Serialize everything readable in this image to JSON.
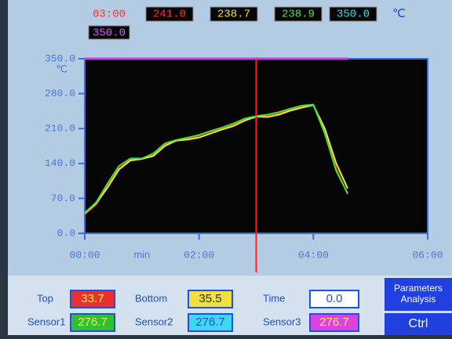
{
  "header": {
    "time": "03:00",
    "readouts": [
      {
        "text": "241.0",
        "color": "#ff3030"
      },
      {
        "text": "238.7",
        "color": "#f0e040"
      },
      {
        "text": "238.9",
        "color": "#50e050"
      },
      {
        "text": "350.0",
        "color": "#40d8e8"
      }
    ],
    "unit": "℃",
    "setpoint": {
      "text": "350.0",
      "color": "#d060f0"
    }
  },
  "chart_data": {
    "type": "line",
    "y_unit": "℃",
    "x_unit": "min",
    "x": [
      0,
      0.2,
      0.4,
      0.6,
      0.8,
      1.0,
      1.2,
      1.4,
      1.6,
      1.8,
      2.0,
      2.2,
      2.4,
      2.6,
      2.8,
      3.0,
      3.2,
      3.4,
      3.6,
      3.8,
      4.0,
      4.2,
      4.4,
      4.6
    ],
    "series": [
      {
        "color": "#ff2020",
        "values": [
          38,
          58,
          95,
          130,
          148,
          150,
          158,
          178,
          185,
          190,
          196,
          204,
          210,
          218,
          228,
          233,
          236,
          240,
          248,
          255,
          257,
          205,
          130,
          78
        ]
      },
      {
        "color": "#f0f020",
        "values": [
          40,
          60,
          92,
          128,
          146,
          149,
          155,
          175,
          186,
          188,
          192,
          200,
          208,
          215,
          226,
          234,
          233,
          238,
          246,
          252,
          257,
          210,
          140,
          90
        ]
      },
      {
        "color": "#40e040",
        "values": [
          41,
          62,
          100,
          135,
          150,
          150,
          160,
          180,
          187,
          192,
          197,
          205,
          212,
          220,
          230,
          235,
          238,
          243,
          250,
          256,
          258,
          200,
          125,
          80
        ]
      }
    ],
    "limit_line": {
      "value": 350,
      "x": [
        0,
        4.6
      ],
      "color": "#c040e0"
    },
    "cursor": {
      "x": 3.0,
      "color": "#ff2020"
    },
    "xlim": [
      0,
      6
    ],
    "ylim": [
      0,
      350
    ],
    "xticks": [
      {
        "value": 0,
        "label": "00:00"
      },
      {
        "value": 2,
        "label": "02:00"
      },
      {
        "value": 4,
        "label": "04:00"
      },
      {
        "value": 6,
        "label": "06:00"
      }
    ],
    "yticks": [
      {
        "value": 0,
        "label": "0.0"
      },
      {
        "value": 70,
        "label": "70.0"
      },
      {
        "value": 140,
        "label": "140.0"
      },
      {
        "value": 210,
        "label": "210.0"
      },
      {
        "value": 280,
        "label": "280.0"
      },
      {
        "value": 350,
        "label": "350.0"
      }
    ]
  },
  "panel": {
    "fields": [
      {
        "label": "Top",
        "value": "33.7",
        "bg": "#e83030",
        "fg": "#f0f060"
      },
      {
        "label": "Bottom",
        "value": "35.5",
        "bg": "#f0e040",
        "fg": "#303030"
      },
      {
        "label": "Time",
        "value": "0.0",
        "bg": "#ffffff",
        "fg": "#2050e0"
      },
      {
        "label": "Sensor1",
        "value": "276.7",
        "bg": "#30c030",
        "fg": "#f0f060"
      },
      {
        "label": "Sensor2",
        "value": "276.7",
        "bg": "#40d8f0",
        "fg": "#2050e0"
      },
      {
        "label": "Sensor3",
        "value": "276.7",
        "bg": "#e040e0",
        "fg": "#f0f060"
      }
    ],
    "buttons": [
      "Parameters Analysis",
      "Ctrl"
    ]
  }
}
